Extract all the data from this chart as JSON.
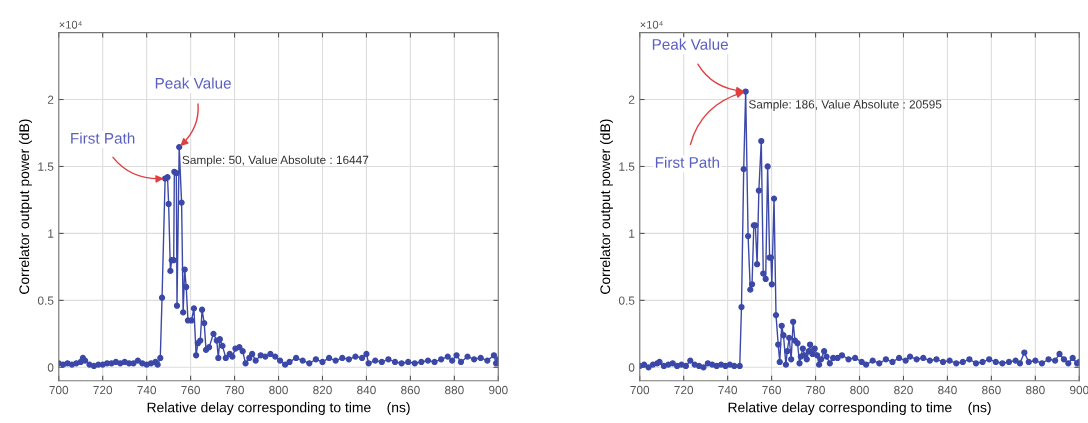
{
  "chart_data": [
    {
      "type": "line",
      "xlabel": "Relative delay corresponding to time    (ns)",
      "ylabel": "Correlator output power (dB)",
      "xlim": [
        700,
        900
      ],
      "xticks": [
        700,
        720,
        740,
        760,
        780,
        800,
        820,
        840,
        860,
        880,
        900
      ],
      "ylim": [
        -0.1,
        2.5
      ],
      "yticks": [
        0,
        0.5,
        1,
        1.5,
        2
      ],
      "grid": true,
      "marker": "circle",
      "line_style": "solid",
      "annotations": [
        "×10⁴",
        {
          "text": "First Path",
          "x": 748.4,
          "y": 1.41
        },
        {
          "text": "Peak Value",
          "x": 754.8,
          "y": 1.6447
        },
        {
          "text": "Sample: 50, Value Absolute : 16447",
          "x": 754.8,
          "y": 1.6447
        }
      ],
      "series": [
        {
          "color": "#3b48a8",
          "x": [
            700,
            702,
            704,
            706,
            708,
            710,
            711,
            712,
            714,
            716,
            718,
            720,
            722,
            724,
            726,
            728,
            730,
            732,
            734,
            736,
            738,
            740,
            742,
            744,
            745,
            746.2,
            747,
            748.4,
            749.5,
            750,
            750.8,
            751.4,
            752.3,
            752.6,
            753.5,
            753.8,
            754.8,
            755.9,
            756.6,
            757.3,
            758,
            758.8,
            760.4,
            761.5,
            762.5,
            763.3,
            764.4,
            765.2,
            766.2,
            767,
            768.4,
            770.4,
            771.9,
            772.6,
            773.3,
            774.5,
            776,
            777.8,
            779,
            780.4,
            782.2,
            783.7,
            785,
            786.7,
            788,
            789.6,
            791.9,
            794,
            796.3,
            798.5,
            800.7,
            803,
            805,
            808,
            811,
            814,
            817,
            820,
            823,
            826,
            829,
            832,
            835,
            838,
            840,
            841,
            844,
            847,
            850,
            853,
            856,
            859,
            862,
            865,
            868,
            871,
            874,
            877,
            879,
            881,
            883,
            886,
            889,
            892,
            895,
            898,
            899,
            900
          ],
          "values": [
            0.03,
            0.02,
            0.03,
            0.02,
            0.03,
            0.04,
            0.07,
            0.05,
            0.02,
            0.01,
            0.02,
            0.02,
            0.03,
            0.03,
            0.04,
            0.03,
            0.04,
            0.03,
            0.03,
            0.05,
            0.03,
            0.02,
            0.03,
            0.04,
            0.02,
            0.07,
            0.52,
            1.41,
            1.42,
            1.22,
            0.72,
            0.8,
            0.8,
            1.46,
            1.45,
            0.46,
            1.6447,
            1.23,
            0.41,
            0.73,
            0.6,
            0.35,
            0.35,
            0.44,
            0.09,
            0.18,
            0.2,
            0.43,
            0.33,
            0.13,
            0.15,
            0.25,
            0.2,
            0.07,
            0.21,
            0.16,
            0.07,
            0.1,
            0.08,
            0.14,
            0.15,
            0.12,
            0.03,
            0.07,
            0.1,
            0.05,
            0.09,
            0.08,
            0.1,
            0.08,
            0.05,
            0.02,
            0.04,
            0.07,
            0.05,
            0.03,
            0.06,
            0.04,
            0.07,
            0.05,
            0.07,
            0.06,
            0.08,
            0.07,
            0.1,
            0.03,
            0.05,
            0.04,
            0.06,
            0.04,
            0.03,
            0.04,
            0.03,
            0.04,
            0.05,
            0.04,
            0.06,
            0.08,
            0.05,
            0.09,
            0.04,
            0.08,
            0.06,
            0.07,
            0.05,
            0.09,
            0.03,
            0.06
          ]
        }
      ]
    },
    {
      "type": "line",
      "xlabel": "Relative delay corresponding to time    (ns)",
      "ylabel": "Correlator output power (dB)",
      "xlim": [
        700,
        900
      ],
      "xticks": [
        700,
        720,
        740,
        760,
        780,
        800,
        820,
        840,
        860,
        880,
        900
      ],
      "ylim": [
        -0.1,
        2.5
      ],
      "yticks": [
        0,
        0.5,
        1,
        1.5,
        2
      ],
      "grid": true,
      "marker": "circle",
      "line_style": "solid",
      "annotations": [
        "×10⁴",
        {
          "text": "Peak Value",
          "x": 748.2,
          "y": 2.0595
        },
        {
          "text": "First Path",
          "x": 748.2,
          "y": 2.0595
        },
        {
          "text": "Sample: 186, Value Absolute : 20595",
          "x": 748.2,
          "y": 2.0595
        }
      ],
      "series": [
        {
          "color": "#3b48a8",
          "x": [
            700,
            702,
            704,
            706,
            708,
            709,
            711,
            713,
            715,
            717,
            719,
            721,
            723,
            725,
            727,
            729,
            731,
            733,
            735,
            737,
            739,
            741,
            743,
            745.5,
            746.3,
            747.3,
            748.2,
            749.3,
            750.3,
            751.1,
            751.9,
            752.6,
            753.4,
            754.2,
            755.3,
            756.2,
            757.3,
            758.2,
            759.1,
            759.7,
            760.1,
            761.1,
            762,
            763,
            763.7,
            764.6,
            765.4,
            766.5,
            767.1,
            768,
            768.9,
            769.8,
            770.6,
            771.8,
            772.7,
            773.3,
            774.2,
            775,
            776,
            776.9,
            777.5,
            778.6,
            779.6,
            780.7,
            781.6,
            782.5,
            783.9,
            785,
            786.5,
            788,
            790,
            792,
            795,
            798,
            801,
            803,
            806,
            809,
            812,
            815,
            818,
            821,
            823,
            826,
            829,
            832,
            835,
            838,
            841,
            844,
            847,
            850,
            853,
            856,
            859,
            862,
            865,
            868,
            871,
            873,
            875,
            877,
            880,
            883,
            886,
            889,
            891,
            893,
            895,
            897,
            899,
            900
          ],
          "values": [
            0.01,
            0.02,
            0.0,
            0.02,
            0.03,
            0.04,
            0.01,
            0.02,
            0.03,
            0.01,
            0.02,
            0.01,
            0.05,
            0.02,
            0.01,
            0.0,
            0.03,
            0.02,
            0.01,
            0.02,
            0.01,
            0.02,
            0.01,
            0.01,
            0.45,
            1.48,
            2.0595,
            0.98,
            0.58,
            0.62,
            1.06,
            1.06,
            0.77,
            1.32,
            1.69,
            0.7,
            0.66,
            1.5,
            0.82,
            0.82,
            0.62,
            1.26,
            0.39,
            0.17,
            0.04,
            0.31,
            0.24,
            0.02,
            0.12,
            0.22,
            0.06,
            0.34,
            0.2,
            0.18,
            0.03,
            0.08,
            0.14,
            0.09,
            0.06,
            0.12,
            0.17,
            0.1,
            0.14,
            0.09,
            0.02,
            0.06,
            0.12,
            0.08,
            0.03,
            0.07,
            0.07,
            0.09,
            0.06,
            0.07,
            0.04,
            0.02,
            0.05,
            0.03,
            0.06,
            0.04,
            0.07,
            0.05,
            0.08,
            0.06,
            0.07,
            0.05,
            0.06,
            0.04,
            0.05,
            0.03,
            0.04,
            0.06,
            0.03,
            0.04,
            0.06,
            0.04,
            0.03,
            0.04,
            0.05,
            0.03,
            0.11,
            0.04,
            0.05,
            0.03,
            0.06,
            0.05,
            0.1,
            0.06,
            0.03,
            0.07,
            0.03,
            0.04
          ]
        }
      ]
    }
  ]
}
